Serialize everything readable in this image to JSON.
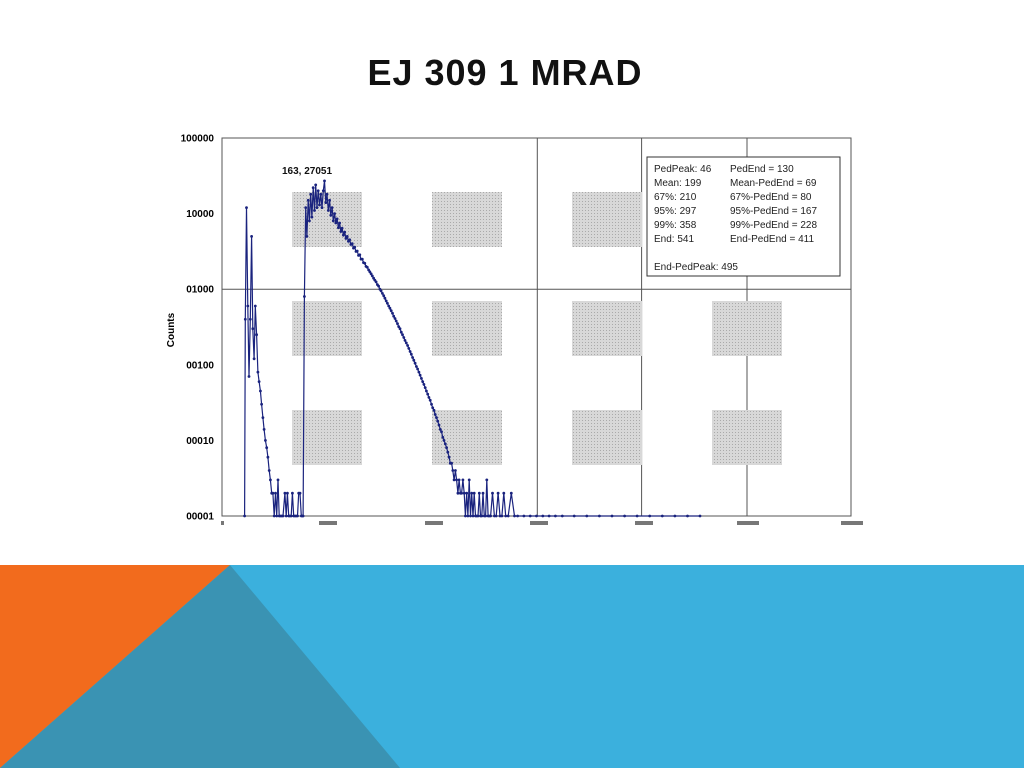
{
  "slide": {
    "title": "EJ 309 1 MRAD"
  },
  "colors": {
    "series": "#1a237e",
    "gridline": "#555555",
    "watermark": "#c8c8c8",
    "footer_blue": "#3bb0dd",
    "footer_orange": "#f26b1d",
    "footer_teal": "#3a93b3"
  },
  "chart_data": {
    "type": "scatter",
    "scale_y": "log",
    "xlim": [
      0,
      1000
    ],
    "ylim": [
      1,
      100000
    ],
    "ylabel": "Counts",
    "y_tick_labels": [
      "00001",
      "00010",
      "00100",
      "01000",
      "10000",
      "100000"
    ],
    "x_tick_labels_cropped": true,
    "grid": "vertical lines at 500, 666, 833; horizontal line at 1000",
    "peak_annotation": "163, 27051",
    "stats_box": {
      "left_column": [
        "PedPeak:  46",
        "Mean: 199",
        "67%: 210",
        "95%: 297",
        "99%: 358",
        "End: 541"
      ],
      "right_column": [
        "PedEnd = 130",
        "Mean-PedEnd = 69",
        "67%-PedEnd = 80",
        "95%-PedEnd = 167",
        "99%-PedEnd = 228",
        "End-PedEnd = 411"
      ],
      "footer": "End-PedPeak: 495"
    },
    "series": [
      {
        "points": [
          [
            36,
            1
          ],
          [
            37,
            400
          ],
          [
            39,
            12000
          ],
          [
            41,
            600
          ],
          [
            43,
            70
          ],
          [
            45,
            400
          ],
          [
            47,
            5000
          ],
          [
            49,
            300
          ],
          [
            51,
            120
          ],
          [
            53,
            600
          ],
          [
            55,
            250
          ],
          [
            57,
            80
          ],
          [
            59,
            60
          ],
          [
            61,
            45
          ],
          [
            63,
            30
          ],
          [
            65,
            20
          ],
          [
            67,
            14
          ],
          [
            69,
            10
          ],
          [
            71,
            8
          ],
          [
            73,
            6
          ],
          [
            75,
            4
          ],
          [
            77,
            3
          ],
          [
            79,
            2
          ],
          [
            81,
            2
          ],
          [
            83,
            1
          ],
          [
            85,
            2
          ],
          [
            87,
            1
          ],
          [
            89,
            3
          ],
          [
            91,
            1
          ],
          [
            93,
            1
          ],
          [
            95,
            1
          ],
          [
            97,
            1
          ],
          [
            100,
            2
          ],
          [
            102,
            1
          ],
          [
            104,
            2
          ],
          [
            106,
            1
          ],
          [
            108,
            1
          ],
          [
            110,
            1
          ],
          [
            112,
            2
          ],
          [
            114,
            1
          ],
          [
            116,
            1
          ],
          [
            118,
            1
          ],
          [
            120,
            1
          ],
          [
            122,
            2
          ],
          [
            124,
            2
          ],
          [
            126,
            1
          ],
          [
            128,
            1
          ],
          [
            129,
            1
          ],
          [
            131,
            800
          ],
          [
            133,
            12000
          ],
          [
            135,
            5000
          ],
          [
            137,
            15000
          ],
          [
            139,
            8000
          ],
          [
            141,
            18000
          ],
          [
            143,
            9000
          ],
          [
            145,
            22000
          ],
          [
            147,
            11000
          ],
          [
            149,
            24000
          ],
          [
            151,
            12000
          ],
          [
            153,
            20000
          ],
          [
            155,
            13000
          ],
          [
            157,
            18000
          ],
          [
            159,
            12000
          ],
          [
            161,
            20000
          ],
          [
            163,
            27051
          ],
          [
            165,
            14000
          ],
          [
            167,
            18000
          ],
          [
            169,
            11000
          ],
          [
            171,
            15000
          ],
          [
            173,
            9500
          ],
          [
            175,
            12000
          ],
          [
            177,
            8000
          ],
          [
            179,
            10000
          ],
          [
            181,
            7500
          ],
          [
            183,
            8500
          ],
          [
            185,
            6500
          ],
          [
            187,
            7500
          ],
          [
            189,
            5800
          ],
          [
            191,
            6400
          ],
          [
            193,
            5200
          ],
          [
            195,
            5700
          ],
          [
            197,
            4700
          ],
          [
            199,
            5000
          ],
          [
            201,
            4300
          ],
          [
            203,
            4500
          ],
          [
            205,
            3900
          ],
          [
            207,
            4000
          ],
          [
            209,
            3500
          ],
          [
            211,
            3600
          ],
          [
            213,
            3150
          ],
          [
            215,
            3200
          ],
          [
            217,
            2800
          ],
          [
            219,
            2850
          ],
          [
            221,
            2500
          ],
          [
            223,
            2500
          ],
          [
            225,
            2250
          ],
          [
            227,
            2200
          ],
          [
            229,
            2000
          ],
          [
            231,
            1950
          ],
          [
            233,
            1800
          ],
          [
            235,
            1700
          ],
          [
            237,
            1600
          ],
          [
            239,
            1500
          ],
          [
            241,
            1400
          ],
          [
            243,
            1320
          ],
          [
            245,
            1250
          ],
          [
            247,
            1150
          ],
          [
            249,
            1100
          ],
          [
            251,
            1000
          ],
          [
            253,
            950
          ],
          [
            255,
            880
          ],
          [
            257,
            820
          ],
          [
            259,
            760
          ],
          [
            261,
            700
          ],
          [
            263,
            650
          ],
          [
            265,
            600
          ],
          [
            267,
            560
          ],
          [
            269,
            520
          ],
          [
            271,
            480
          ],
          [
            273,
            440
          ],
          [
            275,
            410
          ],
          [
            277,
            380
          ],
          [
            279,
            350
          ],
          [
            281,
            320
          ],
          [
            283,
            300
          ],
          [
            285,
            270
          ],
          [
            287,
            250
          ],
          [
            289,
            230
          ],
          [
            291,
            210
          ],
          [
            293,
            195
          ],
          [
            295,
            180
          ],
          [
            297,
            165
          ],
          [
            299,
            150
          ],
          [
            301,
            138
          ],
          [
            303,
            125
          ],
          [
            305,
            115
          ],
          [
            307,
            105
          ],
          [
            309,
            95
          ],
          [
            311,
            88
          ],
          [
            313,
            80
          ],
          [
            315,
            73
          ],
          [
            317,
            66
          ],
          [
            319,
            60
          ],
          [
            321,
            55
          ],
          [
            323,
            50
          ],
          [
            325,
            45
          ],
          [
            327,
            41
          ],
          [
            329,
            37
          ],
          [
            331,
            34
          ],
          [
            333,
            30
          ],
          [
            335,
            27
          ],
          [
            337,
            25
          ],
          [
            339,
            22
          ],
          [
            341,
            20
          ],
          [
            343,
            18
          ],
          [
            345,
            16
          ],
          [
            347,
            14
          ],
          [
            349,
            13
          ],
          [
            351,
            11
          ],
          [
            353,
            10
          ],
          [
            355,
            9
          ],
          [
            357,
            8
          ],
          [
            359,
            7
          ],
          [
            361,
            6
          ],
          [
            363,
            5
          ],
          [
            365,
            5
          ],
          [
            367,
            4
          ],
          [
            369,
            3
          ],
          [
            371,
            4
          ],
          [
            373,
            3
          ],
          [
            375,
            2
          ],
          [
            377,
            3
          ],
          [
            379,
            2
          ],
          [
            381,
            2
          ],
          [
            383,
            3
          ],
          [
            385,
            2
          ],
          [
            387,
            1
          ],
          [
            389,
            2
          ],
          [
            391,
            1
          ],
          [
            393,
            3
          ],
          [
            395,
            1
          ],
          [
            397,
            2
          ],
          [
            399,
            1
          ],
          [
            401,
            2
          ],
          [
            403,
            1
          ],
          [
            405,
            1
          ],
          [
            407,
            1
          ],
          [
            409,
            2
          ],
          [
            411,
            1
          ],
          [
            413,
            1
          ],
          [
            415,
            2
          ],
          [
            417,
            1
          ],
          [
            419,
            1
          ],
          [
            421,
            3
          ],
          [
            423,
            1
          ],
          [
            425,
            1
          ],
          [
            427,
            1
          ],
          [
            430,
            2
          ],
          [
            433,
            1
          ],
          [
            436,
            1
          ],
          [
            439,
            2
          ],
          [
            442,
            1
          ],
          [
            445,
            1
          ],
          [
            448,
            2
          ],
          [
            451,
            1
          ],
          [
            455,
            1
          ],
          [
            460,
            2
          ],
          [
            465,
            1
          ],
          [
            470,
            1
          ],
          [
            480,
            1
          ],
          [
            490,
            1
          ],
          [
            500,
            1
          ],
          [
            510,
            1
          ],
          [
            520,
            1
          ],
          [
            530,
            1
          ],
          [
            541,
            1
          ],
          [
            560,
            1
          ],
          [
            580,
            1
          ],
          [
            600,
            1
          ],
          [
            620,
            1
          ],
          [
            640,
            1
          ],
          [
            660,
            1
          ],
          [
            680,
            1
          ],
          [
            700,
            1
          ],
          [
            720,
            1
          ],
          [
            740,
            1
          ],
          [
            760,
            1
          ]
        ]
      }
    ]
  }
}
